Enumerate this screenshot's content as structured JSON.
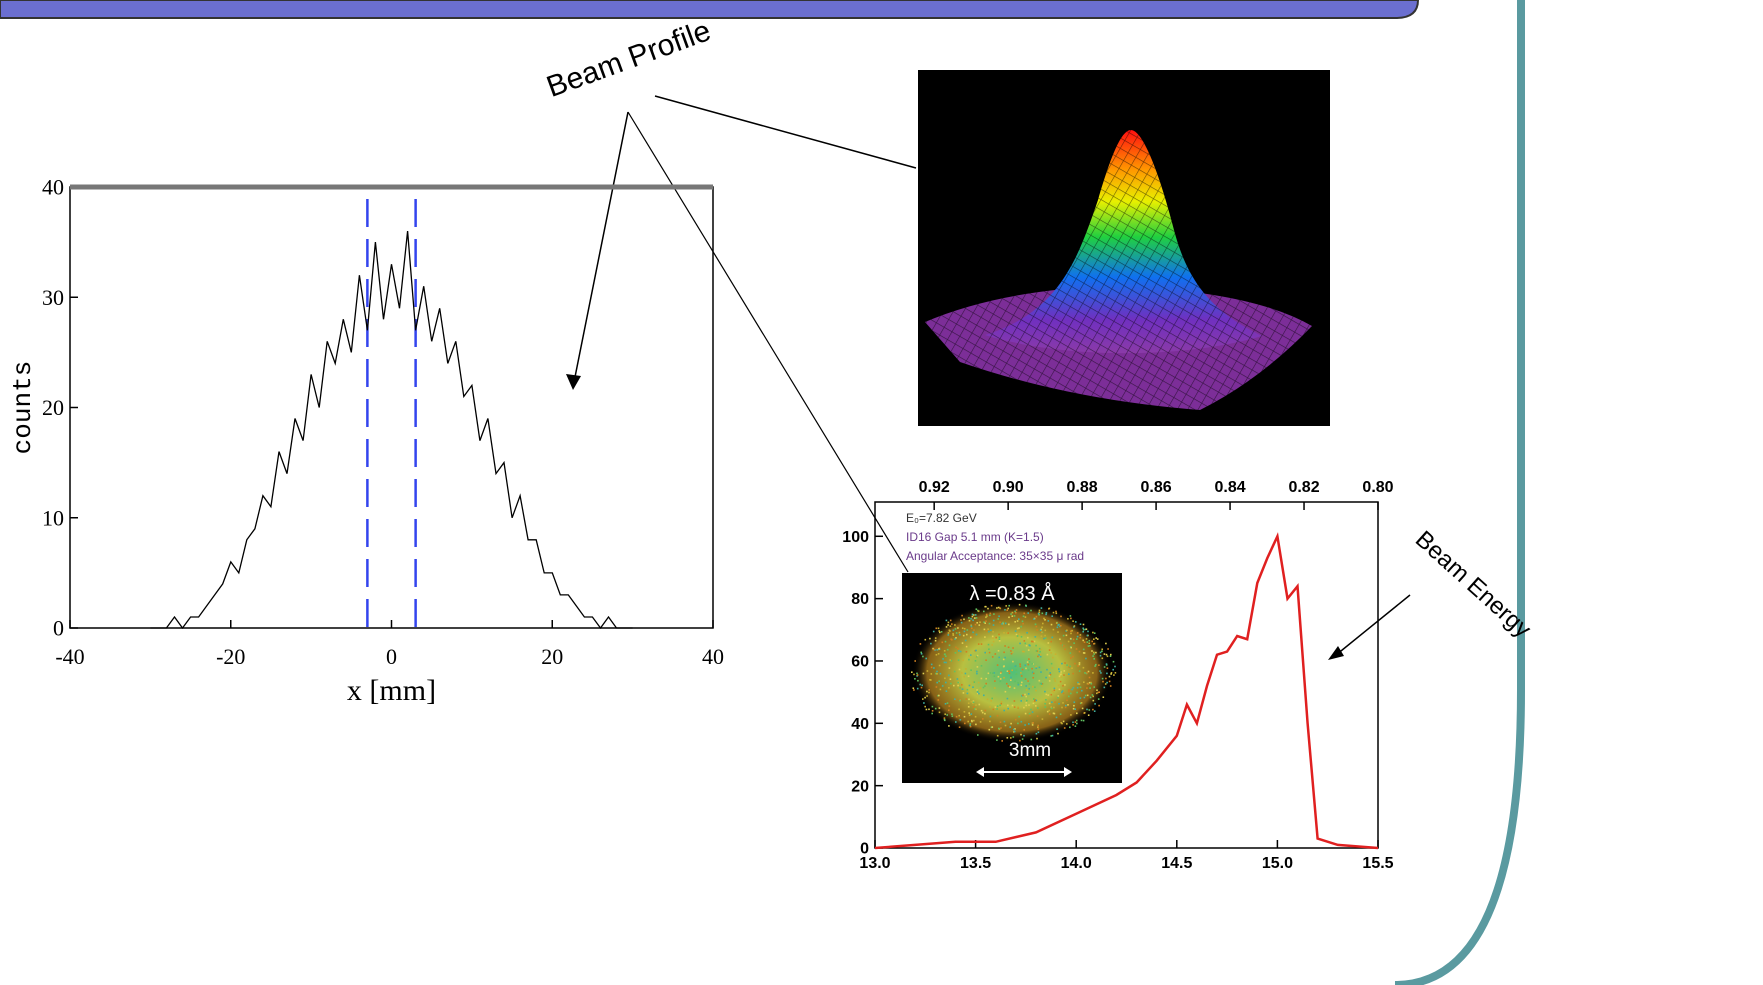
{
  "callouts": [
    "Beam Profile",
    "Beam Energy"
  ],
  "chart_data": [
    {
      "type": "line",
      "xlabel": "x [mm]",
      "ylabel": "counts",
      "color": "#000000",
      "xlim": [
        -40,
        40
      ],
      "ylim": [
        0,
        40
      ],
      "xticks": [
        -40,
        -20,
        0,
        20,
        40
      ],
      "yticks": [
        0,
        10,
        20,
        30,
        40
      ],
      "vlines": [
        -3,
        3
      ],
      "vline_color": "#3344ee",
      "x": [
        -30,
        -29,
        -28,
        -27,
        -26,
        -25,
        -24,
        -23,
        -22,
        -21,
        -20,
        -19,
        -18,
        -17,
        -16,
        -15,
        -14,
        -13,
        -12,
        -11,
        -10,
        -9,
        -8,
        -7,
        -6,
        -5,
        -4,
        -3,
        -2,
        -1,
        0,
        1,
        2,
        3,
        4,
        5,
        6,
        7,
        8,
        9,
        10,
        11,
        12,
        13,
        14,
        15,
        16,
        17,
        18,
        19,
        20,
        21,
        22,
        23,
        24,
        25,
        26,
        27,
        28,
        29,
        30
      ],
      "values": [
        0,
        0,
        0,
        1,
        0,
        1,
        1,
        2,
        3,
        4,
        6,
        5,
        8,
        9,
        12,
        11,
        16,
        14,
        19,
        17,
        23,
        20,
        26,
        24,
        28,
        25,
        32,
        27,
        35,
        28,
        33,
        29,
        36,
        27,
        31,
        26,
        29,
        24,
        26,
        21,
        22,
        17,
        19,
        14,
        15,
        10,
        12,
        8,
        8,
        5,
        5,
        3,
        3,
        2,
        1,
        1,
        0,
        1,
        0,
        0,
        0
      ]
    },
    {
      "type": "line",
      "color": "#e02020",
      "annotations": [
        "E₀=7.82 GeV",
        "ID16 Gap 5.1 mm (K=1.5)",
        "Angular Acceptance: 35×35 μ rad"
      ],
      "inset": {
        "title": "λ =0.83 Å",
        "scale": "3mm"
      },
      "xlim": [
        13,
        15.5
      ],
      "ylim": [
        0,
        111
      ],
      "xticks": [
        {
          "value": 13,
          "label": "13.0"
        },
        13.5,
        {
          "value": 14,
          "label": "14.0"
        },
        14.5,
        {
          "value": 15,
          "label": "15.0"
        },
        15.5
      ],
      "yticks": [
        0,
        20,
        40,
        60,
        80,
        100
      ],
      "x2lim": [
        0.936,
        0.8
      ],
      "x2ticks": [
        0.92,
        {
          "value": 0.9,
          "label": "0.90"
        },
        0.88,
        0.86,
        0.84,
        0.82,
        {
          "value": 0.8,
          "label": "0.80"
        }
      ],
      "x": [
        13.0,
        13.2,
        13.4,
        13.6,
        13.8,
        14.0,
        14.2,
        14.3,
        14.4,
        14.5,
        14.55,
        14.6,
        14.65,
        14.7,
        14.75,
        14.8,
        14.85,
        14.9,
        14.95,
        15.0,
        15.05,
        15.1,
        15.15,
        15.2,
        15.3,
        15.5
      ],
      "values": [
        0,
        1,
        2,
        2,
        5,
        11,
        17,
        21,
        28,
        36,
        46,
        40,
        52,
        62,
        63,
        68,
        67,
        85,
        93,
        100,
        80,
        84,
        40,
        3,
        1,
        0
      ]
    }
  ]
}
